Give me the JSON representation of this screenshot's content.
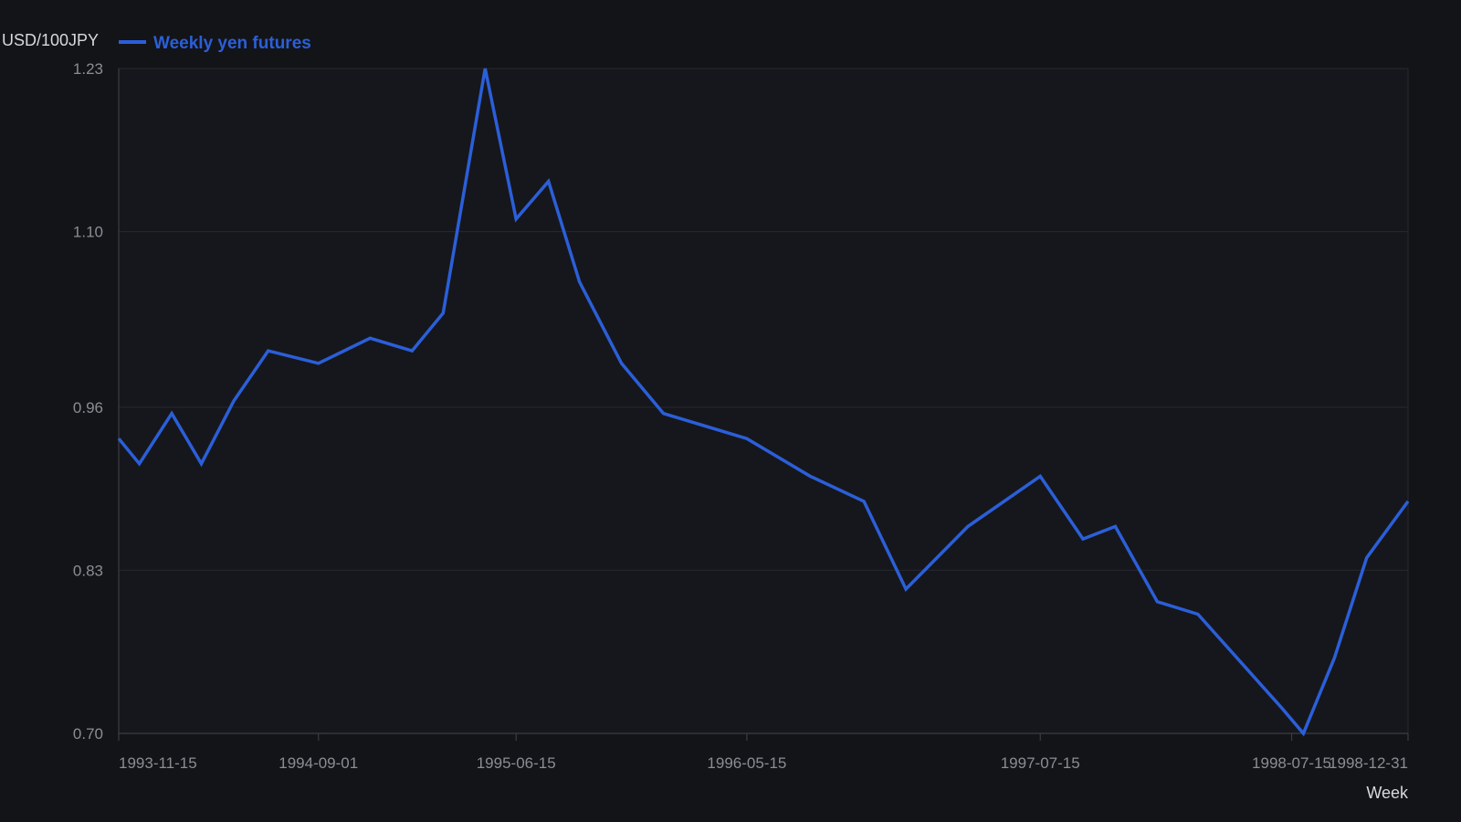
{
  "chart_data": {
    "type": "line",
    "title": "",
    "ylabel": "USD/100JPY",
    "xlabel": "Week",
    "ylim": [
      0.7,
      1.23
    ],
    "xlim": [
      "1993-11-15",
      "1998-12-31"
    ],
    "y_ticks": [
      "0.70",
      "0.83",
      "0.96",
      "1.10",
      "1.23"
    ],
    "x_ticks": [
      "1993-11-15",
      "1994-09-01",
      "1995-06-15",
      "1996-05-15",
      "1997-07-15",
      "1998-07-15",
      "1998-12-31"
    ],
    "grid": "horizontal",
    "legend_position": "top-left",
    "colors": {
      "background": "#131418",
      "plot_background": "#16171c",
      "grid": "#26282e",
      "axis": "#3a3d44",
      "series": "#2b5fd9"
    },
    "series": [
      {
        "name": "Weekly yen futures",
        "color": "#2b5fd9",
        "x": [
          "1993-11-15",
          "1993-12-15",
          "1994-01-31",
          "1994-03-15",
          "1994-05-01",
          "1994-06-20",
          "1994-09-01",
          "1994-11-15",
          "1995-01-15",
          "1995-03-01",
          "1995-05-01",
          "1995-06-15",
          "1995-08-01",
          "1995-09-15",
          "1995-11-15",
          "1996-01-15",
          "1996-05-15",
          "1996-08-15",
          "1996-11-01",
          "1997-01-01",
          "1997-04-01",
          "1997-07-15",
          "1997-09-15",
          "1997-11-01",
          "1998-01-01",
          "1998-03-01",
          "1998-07-01",
          "1998-08-01",
          "1998-09-15",
          "1998-11-01",
          "1998-12-31"
        ],
        "y": [
          0.935,
          0.915,
          0.955,
          0.915,
          0.965,
          1.005,
          0.995,
          1.015,
          1.005,
          1.035,
          1.23,
          1.11,
          1.14,
          1.06,
          0.995,
          0.955,
          0.935,
          0.905,
          0.885,
          0.815,
          0.865,
          0.905,
          0.855,
          0.865,
          0.805,
          0.795,
          0.72,
          0.7,
          0.76,
          0.84,
          0.885
        ]
      }
    ]
  }
}
